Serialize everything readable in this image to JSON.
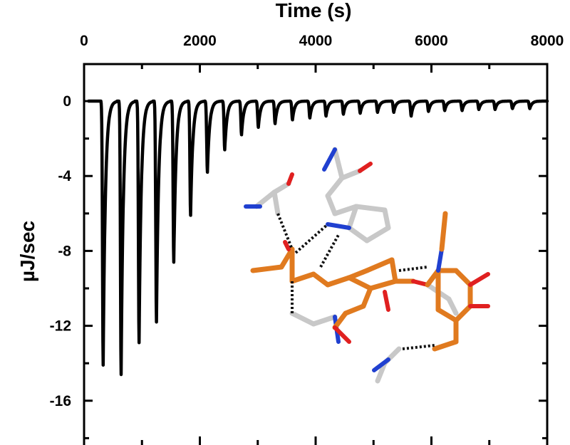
{
  "chart_data": {
    "type": "line",
    "title": "",
    "xlabel": "Time (s)",
    "ylabel": "µJ/sec",
    "xlim": [
      0,
      8000
    ],
    "ylim": [
      -18,
      2
    ],
    "x_ticks": [
      0,
      2000,
      4000,
      6000,
      8000
    ],
    "y_ticks": [
      0,
      -4,
      -8,
      -12,
      -16
    ],
    "x_tick_labels": [
      "0",
      "2000",
      "4000",
      "6000",
      "8000"
    ],
    "y_tick_labels": [
      "0",
      "-4",
      "-8",
      "-12",
      "-16"
    ],
    "x_axis_position": "top",
    "grid": false,
    "legend": "none",
    "series": [
      {
        "color": "#000000",
        "baseline": 0,
        "injection_times": [
          330,
          640,
          950,
          1250,
          1550,
          1840,
          2130,
          2430,
          2720,
          3010,
          3300,
          3600,
          3900,
          4180,
          4480,
          4770,
          5070,
          5350,
          5650,
          5950,
          6230,
          6530,
          6820,
          7100,
          7400,
          7700
        ],
        "peak_values": [
          -14.1,
          -14.6,
          -12.9,
          -11.8,
          -8.6,
          -6.1,
          -3.8,
          -2.6,
          -1.8,
          -1.4,
          -1.2,
          -1.0,
          -0.9,
          -0.8,
          -0.7,
          -0.65,
          -0.6,
          -0.6,
          -0.8,
          -0.55,
          -0.5,
          -0.5,
          -0.45,
          -0.45,
          -0.4,
          -0.4
        ]
      }
    ],
    "inset_image": "ligand-binding-site-structure"
  }
}
